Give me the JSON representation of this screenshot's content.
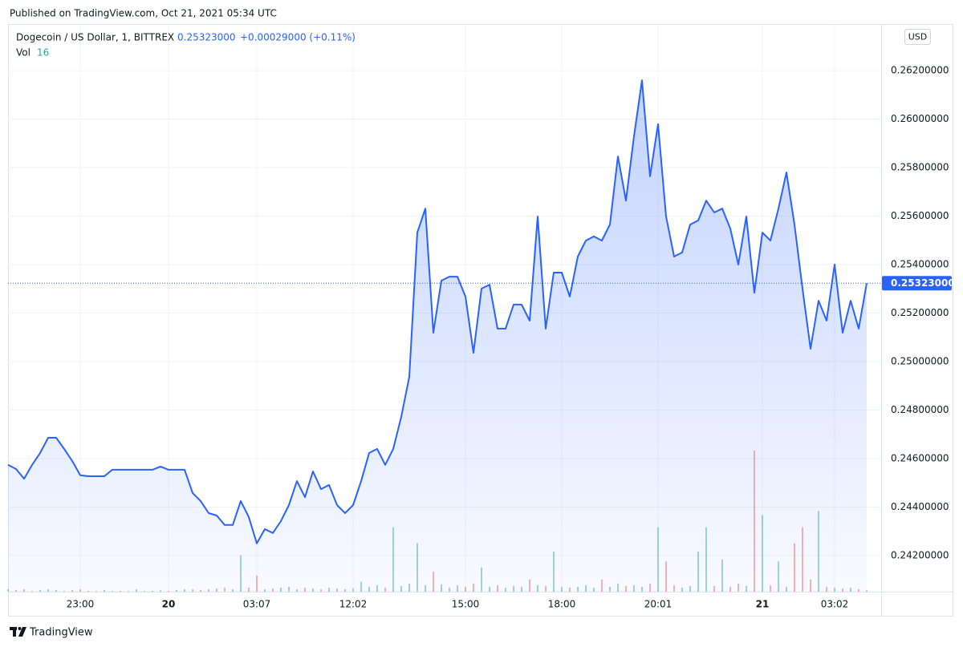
{
  "header": {
    "published": "Published on TradingView.com, Oct 21, 2021 05:34 UTC",
    "symbol": "Dogecoin / US Dollar, 1, BITTREX",
    "change": "+0.00029000 (+0.11%)",
    "volume_label": "Vol",
    "volume_value": "16",
    "currency": "USD",
    "brand": "TradingView"
  },
  "chart_data": {
    "type": "area",
    "price": "0.25323000",
    "categories": [
      null,
      null,
      null,
      null,
      null,
      null,
      null,
      null,
      null,
      "23:00",
      null,
      null,
      null,
      null,
      null,
      null,
      null,
      null,
      null,
      null,
      "20",
      null,
      null,
      null,
      null,
      null,
      null,
      null,
      null,
      null,
      null,
      "03:07",
      null,
      null,
      null,
      null,
      null,
      null,
      null,
      null,
      null,
      null,
      null,
      "12:02",
      null,
      null,
      null,
      null,
      null,
      null,
      null,
      null,
      null,
      null,
      null,
      null,
      null,
      "15:00",
      null,
      null,
      null,
      null,
      null,
      null,
      null,
      null,
      null,
      null,
      null,
      "18:00",
      null,
      null,
      null,
      null,
      null,
      null,
      null,
      null,
      null,
      null,
      null,
      "20:01",
      null,
      null,
      null,
      null,
      null,
      null,
      null,
      null,
      null,
      null,
      null,
      null,
      "21",
      null,
      null,
      null,
      null,
      null,
      null,
      null,
      null,
      "03:02",
      null,
      null,
      null,
      null
    ],
    "values": [
      0.24574,
      0.24557,
      0.24517,
      0.24574,
      0.24623,
      0.24686,
      0.24686,
      0.2464,
      0.2459,
      0.24531,
      0.24527,
      0.24527,
      0.24527,
      0.24554,
      0.24554,
      0.24554,
      0.24554,
      0.24554,
      0.24554,
      0.24567,
      0.24554,
      0.24554,
      0.24554,
      0.24458,
      0.24425,
      0.24375,
      0.24365,
      0.24326,
      0.24326,
      0.24425,
      0.24359,
      0.2425,
      0.24309,
      0.24293,
      0.24342,
      0.24408,
      0.24507,
      0.24441,
      0.24547,
      0.24474,
      0.24491,
      0.24408,
      0.24375,
      0.24408,
      0.24507,
      0.24623,
      0.2464,
      0.24574,
      0.2464,
      0.24772,
      0.24937,
      0.25532,
      0.25631,
      0.25119,
      0.25334,
      0.2535,
      0.2535,
      0.25268,
      0.25036,
      0.25301,
      0.25317,
      0.25136,
      0.25136,
      0.25235,
      0.25235,
      0.25169,
      0.25598,
      0.25136,
      0.25367,
      0.25367,
      0.25268,
      0.25433,
      0.25499,
      0.25516,
      0.25499,
      0.25565,
      0.25846,
      0.25664,
      0.25929,
      0.2616,
      0.25764,
      0.25979,
      0.25598,
      0.25433,
      0.2545,
      0.25565,
      0.25582,
      0.25664,
      0.25615,
      0.25631,
      0.25549,
      0.254,
      0.25598,
      0.25284,
      0.25532,
      0.25499,
      0.25631,
      0.2578,
      0.25565,
      0.25301,
      0.25053,
      0.25251,
      0.25169,
      0.254,
      0.25119,
      0.25251,
      0.25136,
      0.25323
    ],
    "volume": [
      24,
      16,
      24,
      8,
      16,
      24,
      16,
      8,
      16,
      24,
      8,
      8,
      16,
      8,
      8,
      8,
      24,
      8,
      8,
      16,
      8,
      16,
      24,
      24,
      16,
      24,
      32,
      40,
      24,
      360,
      40,
      160,
      24,
      32,
      40,
      48,
      24,
      40,
      32,
      24,
      40,
      32,
      24,
      32,
      100,
      48,
      64,
      40,
      640,
      56,
      80,
      480,
      64,
      200,
      72,
      40,
      64,
      48,
      80,
      240,
      48,
      64,
      40,
      56,
      48,
      120,
      64,
      56,
      400,
      48,
      40,
      48,
      64,
      40,
      120,
      48,
      80,
      56,
      64,
      48,
      80,
      640,
      300,
      64,
      40,
      56,
      400,
      640,
      56,
      320,
      48,
      80,
      56,
      1400,
      760,
      64,
      300,
      48,
      480,
      640,
      120,
      800,
      48,
      40,
      32,
      40,
      24,
      16
    ],
    "color": "#2962ff",
    "up_color": "#26a69a",
    "down_color": "#ef5350",
    "ylim": [
      0.24051,
      0.26392
    ],
    "yticks": [
      {
        "value": 0.242,
        "label": "0.24200000"
      },
      {
        "value": 0.244,
        "label": "0.24400000"
      },
      {
        "value": 0.246,
        "label": "0.24600000"
      },
      {
        "value": 0.248,
        "label": "0.24800000"
      },
      {
        "value": 0.25,
        "label": "0.25000000"
      },
      {
        "value": 0.252,
        "label": "0.25200000"
      },
      {
        "value": 0.254,
        "label": "0.25400000"
      },
      {
        "value": 0.256,
        "label": "0.25600000"
      },
      {
        "value": 0.258,
        "label": "0.25800000"
      },
      {
        "value": 0.26,
        "label": "0.26000000"
      },
      {
        "value": 0.262,
        "label": "0.26200000"
      }
    ],
    "grid": true
  }
}
